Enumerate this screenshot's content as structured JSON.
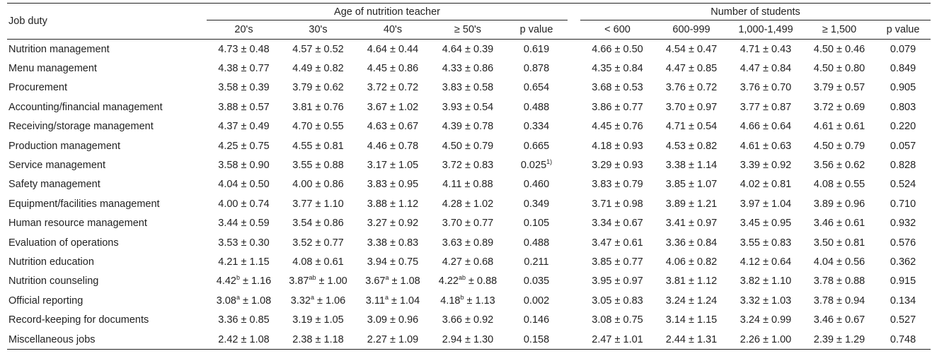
{
  "header": {
    "job_duty": "Job duty",
    "age_group": "Age of nutrition teacher",
    "students_group": "Number of students",
    "age_columns": [
      "20's",
      "30's",
      "40's",
      "≥ 50's",
      "p value"
    ],
    "student_columns": [
      "< 600",
      "600-999",
      "1,000-1,499",
      "≥ 1,500",
      "p value"
    ]
  },
  "rows": [
    {
      "duty": "Nutrition management",
      "age": [
        [
          "4.73",
          "",
          "0.48"
        ],
        [
          "4.57",
          "",
          "0.52"
        ],
        [
          "4.64",
          "",
          "0.44"
        ],
        [
          "4.64",
          "",
          "0.39"
        ]
      ],
      "age_p": "0.619",
      "age_p_sup": "",
      "students": [
        [
          "4.66",
          "",
          "0.50"
        ],
        [
          "4.54",
          "",
          "0.47"
        ],
        [
          "4.71",
          "",
          "0.43"
        ],
        [
          "4.50",
          "",
          "0.46"
        ]
      ],
      "students_p": "0.079"
    },
    {
      "duty": "Menu management",
      "age": [
        [
          "4.38",
          "",
          "0.77"
        ],
        [
          "4.49",
          "",
          "0.82"
        ],
        [
          "4.45",
          "",
          "0.86"
        ],
        [
          "4.33",
          "",
          "0.86"
        ]
      ],
      "age_p": "0.878",
      "age_p_sup": "",
      "students": [
        [
          "4.35",
          "",
          "0.84"
        ],
        [
          "4.47",
          "",
          "0.85"
        ],
        [
          "4.47",
          "",
          "0.84"
        ],
        [
          "4.50",
          "",
          "0.80"
        ]
      ],
      "students_p": "0.849"
    },
    {
      "duty": "Procurement",
      "age": [
        [
          "3.58",
          "",
          "0.39"
        ],
        [
          "3.79",
          "",
          "0.62"
        ],
        [
          "3.72",
          "",
          "0.72"
        ],
        [
          "3.83",
          "",
          "0.58"
        ]
      ],
      "age_p": "0.654",
      "age_p_sup": "",
      "students": [
        [
          "3.68",
          "",
          "0.53"
        ],
        [
          "3.76",
          "",
          "0.72"
        ],
        [
          "3.76",
          "",
          "0.70"
        ],
        [
          "3.79",
          "",
          "0.57"
        ]
      ],
      "students_p": "0.905"
    },
    {
      "duty": "Accounting/financial management",
      "age": [
        [
          "3.88",
          "",
          "0.57"
        ],
        [
          "3.81",
          "",
          "0.76"
        ],
        [
          "3.67",
          "",
          "1.02"
        ],
        [
          "3.93",
          "",
          "0.54"
        ]
      ],
      "age_p": "0.488",
      "age_p_sup": "",
      "students": [
        [
          "3.86",
          "",
          "0.77"
        ],
        [
          "3.70",
          "",
          "0.97"
        ],
        [
          "3.77",
          "",
          "0.87"
        ],
        [
          "3.72",
          "",
          "0.69"
        ]
      ],
      "students_p": "0.803"
    },
    {
      "duty": "Receiving/storage management",
      "age": [
        [
          "4.37",
          "",
          "0.49"
        ],
        [
          "4.70",
          "",
          "0.55"
        ],
        [
          "4.63",
          "",
          "0.67"
        ],
        [
          "4.39",
          "",
          "0.78"
        ]
      ],
      "age_p": "0.334",
      "age_p_sup": "",
      "students": [
        [
          "4.45",
          "",
          "0.76"
        ],
        [
          "4.71",
          "",
          "0.54"
        ],
        [
          "4.66",
          "",
          "0.64"
        ],
        [
          "4.61",
          "",
          "0.61"
        ]
      ],
      "students_p": "0.220"
    },
    {
      "duty": "Production management",
      "age": [
        [
          "4.25",
          "",
          "0.75"
        ],
        [
          "4.55",
          "",
          "0.81"
        ],
        [
          "4.46",
          "",
          "0.78"
        ],
        [
          "4.50",
          "",
          "0.79"
        ]
      ],
      "age_p": "0.665",
      "age_p_sup": "",
      "students": [
        [
          "4.18",
          "",
          "0.93"
        ],
        [
          "4.53",
          "",
          "0.82"
        ],
        [
          "4.61",
          "",
          "0.63"
        ],
        [
          "4.50",
          "",
          "0.79"
        ]
      ],
      "students_p": "0.057"
    },
    {
      "duty": "Service management",
      "age": [
        [
          "3.58",
          "",
          "0.90"
        ],
        [
          "3.55",
          "",
          "0.88"
        ],
        [
          "3.17",
          "",
          "1.05"
        ],
        [
          "3.72",
          "",
          "0.83"
        ]
      ],
      "age_p": "0.025",
      "age_p_sup": "1)",
      "students": [
        [
          "3.29",
          "",
          "0.93"
        ],
        [
          "3.38",
          "",
          "1.14"
        ],
        [
          "3.39",
          "",
          "0.92"
        ],
        [
          "3.56",
          "",
          "0.62"
        ]
      ],
      "students_p": "0.828"
    },
    {
      "duty": "Safety management",
      "age": [
        [
          "4.04",
          "",
          "0.50"
        ],
        [
          "4.00",
          "",
          "0.86"
        ],
        [
          "3.83",
          "",
          "0.95"
        ],
        [
          "4.11",
          "",
          "0.88"
        ]
      ],
      "age_p": "0.460",
      "age_p_sup": "",
      "students": [
        [
          "3.83",
          "",
          "0.79"
        ],
        [
          "3.85",
          "",
          "1.07"
        ],
        [
          "4.02",
          "",
          "0.81"
        ],
        [
          "4.08",
          "",
          "0.55"
        ]
      ],
      "students_p": "0.524"
    },
    {
      "duty": "Equipment/facilities management",
      "age": [
        [
          "4.00",
          "",
          "0.74"
        ],
        [
          "3.77",
          "",
          "1.10"
        ],
        [
          "3.88",
          "",
          "1.12"
        ],
        [
          "4.28",
          "",
          "1.02"
        ]
      ],
      "age_p": "0.349",
      "age_p_sup": "",
      "students": [
        [
          "3.71",
          "",
          "0.98"
        ],
        [
          "3.89",
          "",
          "1.21"
        ],
        [
          "3.97",
          "",
          "1.04"
        ],
        [
          "3.89",
          "",
          "0.96"
        ]
      ],
      "students_p": "0.710"
    },
    {
      "duty": "Human resource management",
      "age": [
        [
          "3.44",
          "",
          "0.59"
        ],
        [
          "3.54",
          "",
          "0.86"
        ],
        [
          "3.27",
          "",
          "0.92"
        ],
        [
          "3.70",
          "",
          "0.77"
        ]
      ],
      "age_p": "0.105",
      "age_p_sup": "",
      "students": [
        [
          "3.34",
          "",
          "0.67"
        ],
        [
          "3.41",
          "",
          "0.97"
        ],
        [
          "3.45",
          "",
          "0.95"
        ],
        [
          "3.46",
          "",
          "0.61"
        ]
      ],
      "students_p": "0.932"
    },
    {
      "duty": "Evaluation of operations",
      "age": [
        [
          "3.53",
          "",
          "0.30"
        ],
        [
          "3.52",
          "",
          "0.77"
        ],
        [
          "3.38",
          "",
          "0.83"
        ],
        [
          "3.63",
          "",
          "0.89"
        ]
      ],
      "age_p": "0.488",
      "age_p_sup": "",
      "students": [
        [
          "3.47",
          "",
          "0.61"
        ],
        [
          "3.36",
          "",
          "0.84"
        ],
        [
          "3.55",
          "",
          "0.83"
        ],
        [
          "3.50",
          "",
          "0.81"
        ]
      ],
      "students_p": "0.576"
    },
    {
      "duty": "Nutrition education",
      "age": [
        [
          "4.21",
          "",
          "1.15"
        ],
        [
          "4.08",
          "",
          "0.61"
        ],
        [
          "3.94",
          "",
          "0.75"
        ],
        [
          "4.27",
          "",
          "0.68"
        ]
      ],
      "age_p": "0.211",
      "age_p_sup": "",
      "students": [
        [
          "3.85",
          "",
          "0.77"
        ],
        [
          "4.06",
          "",
          "0.82"
        ],
        [
          "4.12",
          "",
          "0.64"
        ],
        [
          "4.04",
          "",
          "0.56"
        ]
      ],
      "students_p": "0.362"
    },
    {
      "duty": "Nutrition counseling",
      "age": [
        [
          "4.42",
          "b",
          "1.16"
        ],
        [
          "3.87",
          "ab",
          "1.00"
        ],
        [
          "3.67",
          "a",
          "1.08"
        ],
        [
          "4.22",
          "ab",
          "0.88"
        ]
      ],
      "age_p": "0.035",
      "age_p_sup": "",
      "students": [
        [
          "3.95",
          "",
          "0.97"
        ],
        [
          "3.81",
          "",
          "1.12"
        ],
        [
          "3.82",
          "",
          "1.10"
        ],
        [
          "3.78",
          "",
          "0.88"
        ]
      ],
      "students_p": "0.915"
    },
    {
      "duty": "Official reporting",
      "age": [
        [
          "3.08",
          "a",
          "1.08"
        ],
        [
          "3.32",
          "a",
          "1.06"
        ],
        [
          "3.11",
          "a",
          "1.04"
        ],
        [
          "4.18",
          "b",
          "1.13"
        ]
      ],
      "age_p": "0.002",
      "age_p_sup": "",
      "students": [
        [
          "3.05",
          "",
          "0.83"
        ],
        [
          "3.24",
          "",
          "1.24"
        ],
        [
          "3.32",
          "",
          "1.03"
        ],
        [
          "3.78",
          "",
          "0.94"
        ]
      ],
      "students_p": "0.134"
    },
    {
      "duty": "Record-keeping for documents",
      "age": [
        [
          "3.36",
          "",
          "0.85"
        ],
        [
          "3.19",
          "",
          "1.05"
        ],
        [
          "3.09",
          "",
          "0.96"
        ],
        [
          "3.66",
          "",
          "0.92"
        ]
      ],
      "age_p": "0.146",
      "age_p_sup": "",
      "students": [
        [
          "3.08",
          "",
          "0.75"
        ],
        [
          "3.14",
          "",
          "1.15"
        ],
        [
          "3.24",
          "",
          "0.99"
        ],
        [
          "3.46",
          "",
          "0.67"
        ]
      ],
      "students_p": "0.527"
    },
    {
      "duty": "Miscellaneous jobs",
      "age": [
        [
          "2.42",
          "",
          "1.08"
        ],
        [
          "2.38",
          "",
          "1.18"
        ],
        [
          "2.27",
          "",
          "1.09"
        ],
        [
          "2.94",
          "",
          "1.30"
        ]
      ],
      "age_p": "0.158",
      "age_p_sup": "",
      "students": [
        [
          "2.47",
          "",
          "1.01"
        ],
        [
          "2.44",
          "",
          "1.31"
        ],
        [
          "2.26",
          "",
          "1.00"
        ],
        [
          "2.39",
          "",
          "1.29"
        ]
      ],
      "students_p": "0.748"
    }
  ]
}
